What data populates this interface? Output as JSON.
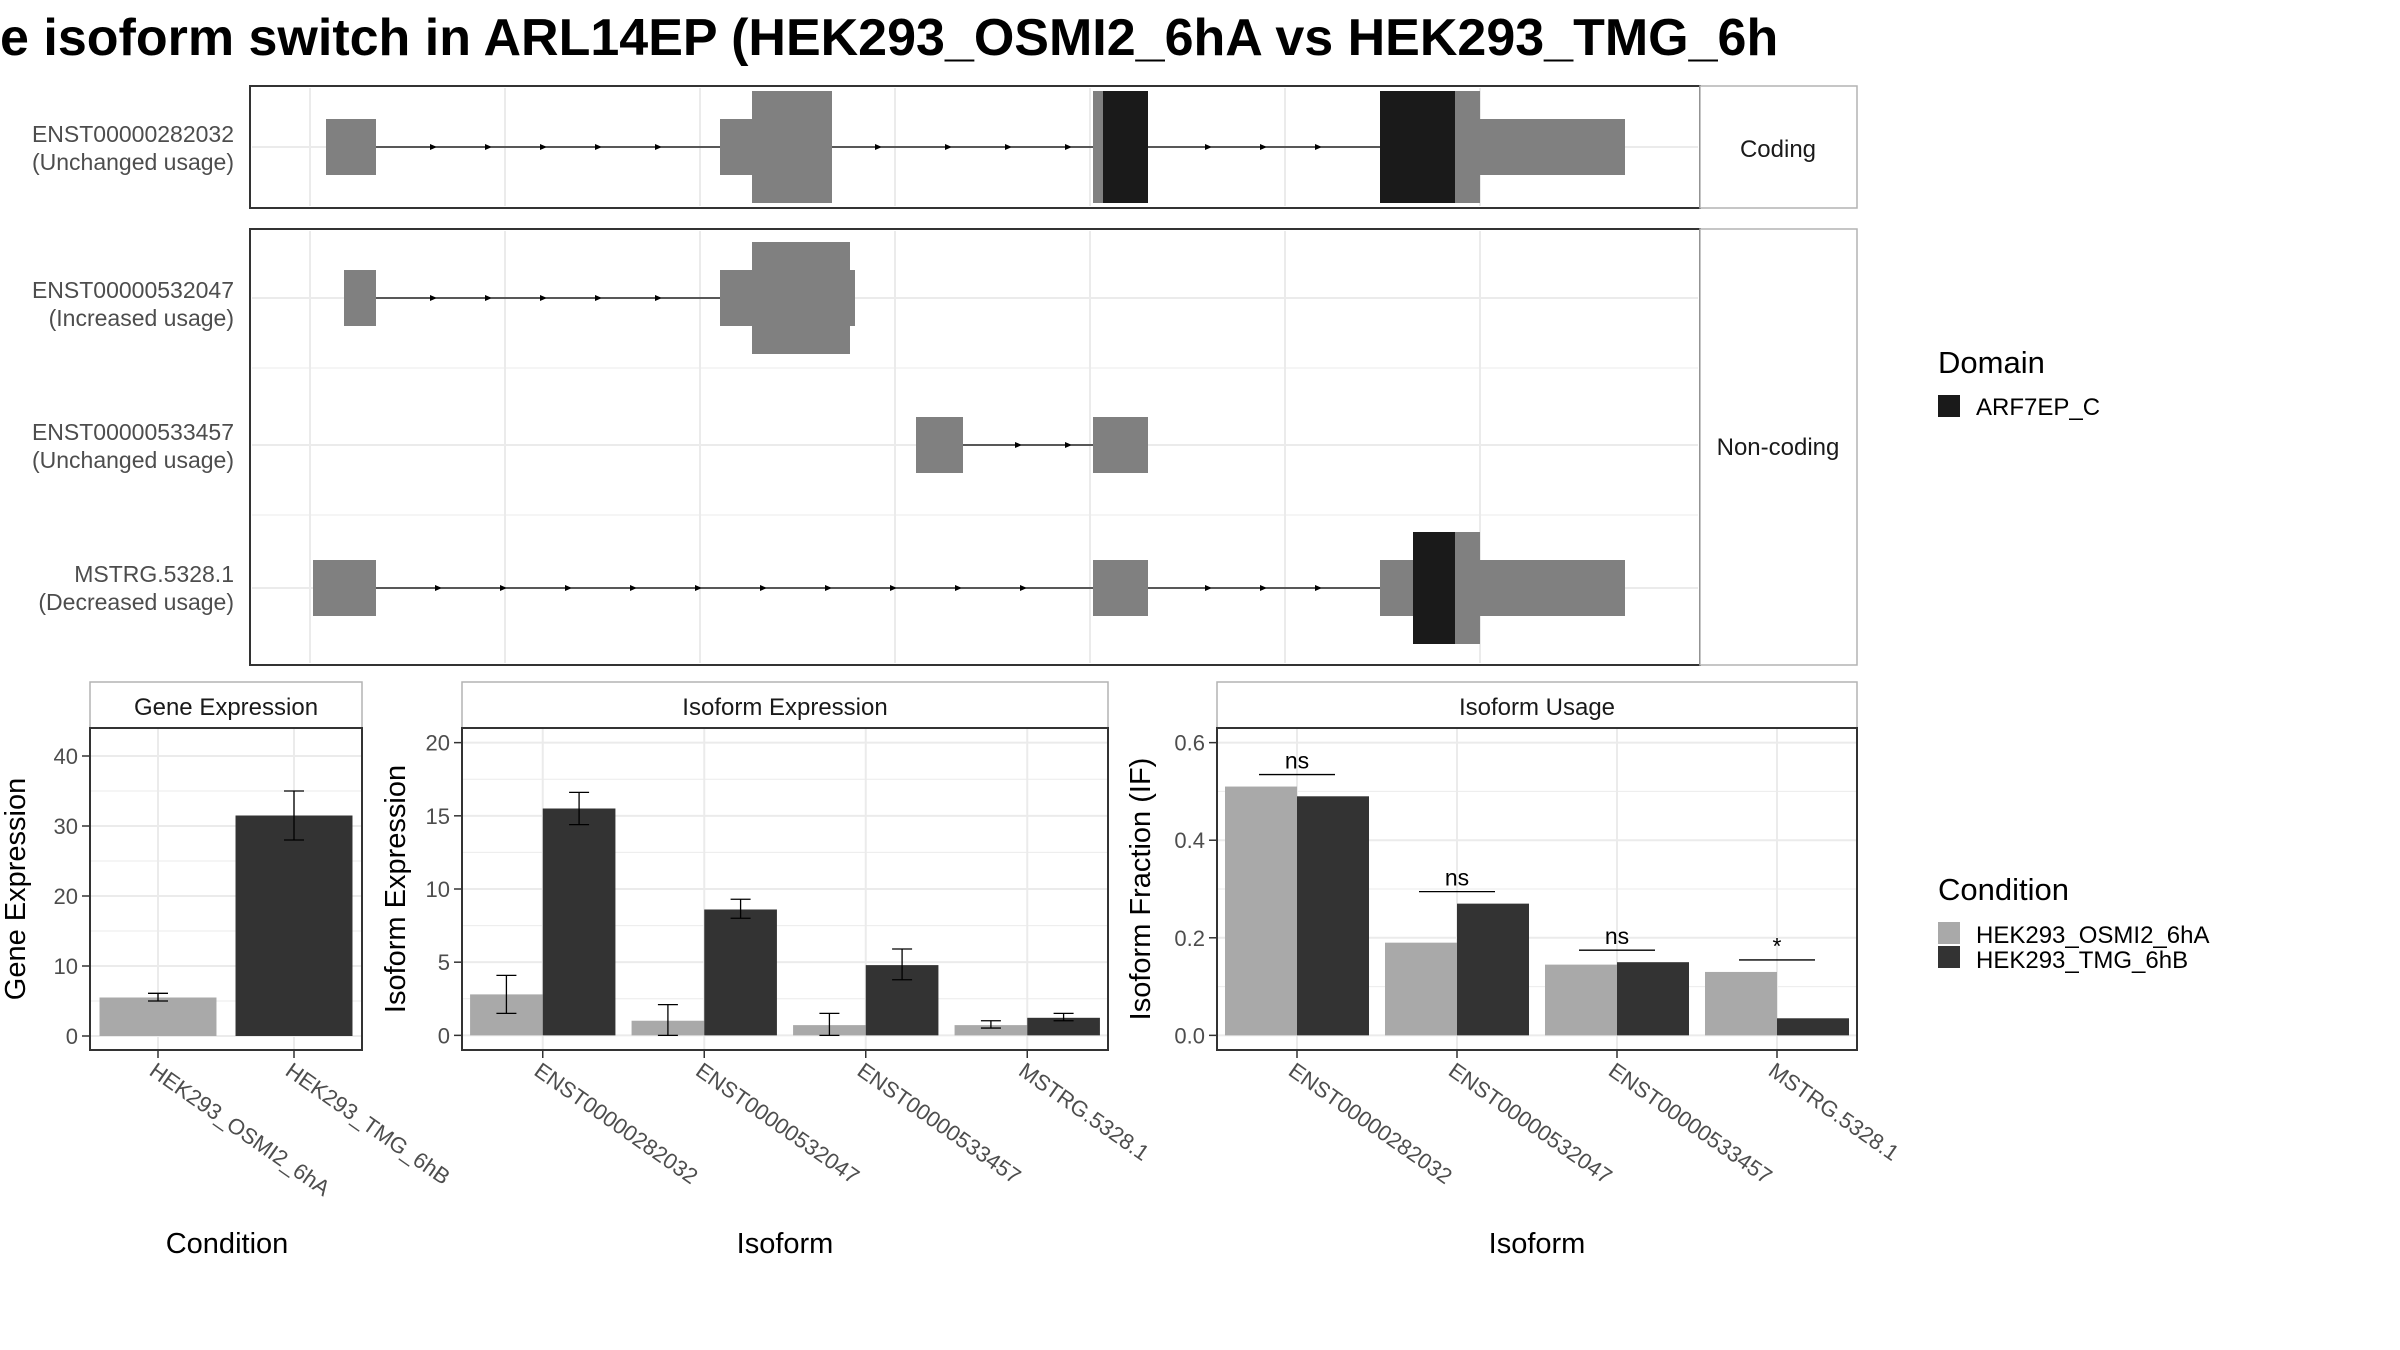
{
  "title": "e isoform switch in ARL14EP (HEK293_OSMI2_6hA vs HEK293_TMG_6h",
  "colors": {
    "cond_a": "#a9a9a9",
    "cond_b": "#333333",
    "exon": "#808080",
    "domain": "#1a1a1a",
    "grid": "#ebebeb",
    "strip_bg": "#ffffff",
    "panel_border": "#333333"
  },
  "structure": {
    "strips": [
      "Coding",
      "Non-coding"
    ],
    "transcripts": [
      {
        "id": "ENST00000282032",
        "usage": "(Unchanged usage)",
        "group": "Coding"
      },
      {
        "id": "ENST00000532047",
        "usage": "(Increased usage)",
        "group": "Non-coding"
      },
      {
        "id": "ENST00000533457",
        "usage": "(Unchanged usage)",
        "group": "Non-coding"
      },
      {
        "id": "MSTRG.5328.1",
        "usage": "(Decreased usage)",
        "group": "Non-coding"
      }
    ]
  },
  "legend": {
    "domain_title": "Domain",
    "domain_items": [
      "ARF7EP_C"
    ],
    "condition_title": "Condition",
    "condition_items": [
      "HEK293_OSMI2_6hA",
      "HEK293_TMG_6hB"
    ]
  },
  "chart_data": [
    {
      "type": "bar",
      "strip": "Gene Expression",
      "xlabel": "Condition",
      "ylabel": "Gene Expression",
      "ylim": [
        -2,
        44
      ],
      "yticks": [
        0,
        10,
        20,
        30,
        40
      ],
      "categories": [
        "HEK293_OSMI2_6hA",
        "HEK293_TMG_6hB"
      ],
      "values": [
        5.5,
        31.5
      ],
      "errors": [
        [
          5.0,
          6.1
        ],
        [
          28.0,
          35.0
        ]
      ],
      "grid": true
    },
    {
      "type": "bar",
      "strip": "Isoform Expression",
      "xlabel": "Isoform",
      "ylabel": "Isoform Expression",
      "ylim": [
        -1,
        21
      ],
      "yticks": [
        0,
        5,
        10,
        15,
        20
      ],
      "categories": [
        "ENST00000282032",
        "ENST00000532047",
        "ENST00000533457",
        "MSTRG.5328.1"
      ],
      "series": [
        {
          "condition": "HEK293_OSMI2_6hA",
          "values": [
            2.8,
            1.0,
            0.7,
            0.7
          ],
          "errors": [
            [
              1.5,
              4.1
            ],
            [
              0.0,
              2.1
            ],
            [
              0.0,
              1.5
            ],
            [
              0.5,
              1.0
            ]
          ]
        },
        {
          "condition": "HEK293_TMG_6hB",
          "values": [
            15.5,
            8.6,
            4.8,
            1.2
          ],
          "errors": [
            [
              14.4,
              16.6
            ],
            [
              8.0,
              9.3
            ],
            [
              3.8,
              5.9
            ],
            [
              1.0,
              1.5
            ]
          ]
        }
      ],
      "grid": true
    },
    {
      "type": "bar",
      "strip": "Isoform Usage",
      "xlabel": "Isoform",
      "ylabel": "Isoform Fraction (IF)",
      "ylim": [
        -0.03,
        0.63
      ],
      "yticks": [
        0.0,
        0.2,
        0.4,
        0.6
      ],
      "ytick_labels": [
        "0.0",
        "0.2",
        "0.4",
        "0.6"
      ],
      "categories": [
        "ENST00000282032",
        "ENST00000532047",
        "ENST00000533457",
        "MSTRG.5328.1"
      ],
      "series": [
        {
          "condition": "HEK293_OSMI2_6hA",
          "values": [
            0.51,
            0.19,
            0.145,
            0.13
          ]
        },
        {
          "condition": "HEK293_TMG_6hB",
          "values": [
            0.49,
            0.27,
            0.15,
            0.035
          ]
        }
      ],
      "significance": [
        "ns",
        "ns",
        "ns",
        "*"
      ],
      "grid": true
    }
  ]
}
